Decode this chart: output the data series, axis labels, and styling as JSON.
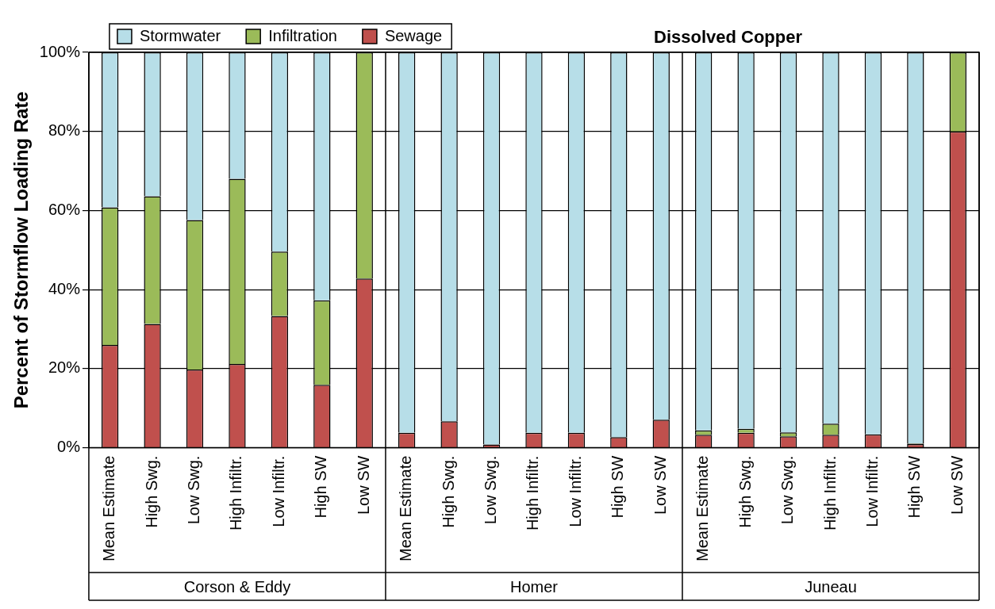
{
  "chart_data": {
    "type": "bar",
    "title": "Dissolved Copper",
    "ylabel": "Percent of Stormflow Loading Rate",
    "stacked": true,
    "grid": "y",
    "legend": "top left",
    "categories": [
      "Mean Estimate",
      "High Swg.",
      "Low Swg.",
      "High Infiltr.",
      "Low Infiltr.",
      "High SW",
      "Low SW",
      "Mean Estimate",
      "High Swg.",
      "Low Swg.",
      "High Infiltr.",
      "Low Infiltr.",
      "High SW",
      "Low SW",
      "Mean Estimate",
      "High Swg.",
      "Low Swg.",
      "High Infiltr.",
      "Low Infiltr.",
      "High SW",
      "Low SW"
    ],
    "annotations": [
      "Corson & Eddy",
      "Homer",
      "Juneau"
    ],
    "ylim": [
      0,
      100
    ],
    "yticks": [
      {
        "value": 0,
        "label": "0%"
      },
      {
        "value": 20,
        "label": "20%"
      },
      {
        "value": 40,
        "label": "40%"
      },
      {
        "value": 60,
        "label": "60%"
      },
      {
        "value": 80,
        "label": "80%"
      },
      {
        "value": 100,
        "label": "100%"
      }
    ],
    "series": [
      {
        "name": "Sewage",
        "color": "#c0504d",
        "values": [
          26,
          31.3,
          19.8,
          21.2,
          33.3,
          15.9,
          42.8,
          3.8,
          6.7,
          0.8,
          3.8,
          3.8,
          2.7,
          7.1,
          3.3,
          3.8,
          2.9,
          3.3,
          3.4,
          0.9,
          80
        ]
      },
      {
        "name": "Infiltration",
        "color": "#9bbb59",
        "values": [
          34.8,
          32.3,
          37.8,
          46.8,
          16.3,
          21.4,
          57.2,
          0,
          0,
          0,
          0,
          0,
          0,
          0,
          1.1,
          1,
          1,
          2.8,
          0,
          0.2,
          20
        ]
      },
      {
        "name": "Stormwater",
        "color": "#b7dee8",
        "values": [
          39.2,
          36.4,
          42.4,
          32,
          50.4,
          62.7,
          0,
          96.2,
          93.3,
          99.2,
          96.2,
          96.2,
          97.3,
          92.9,
          95.6,
          95.2,
          96.1,
          93.9,
          96.6,
          98.9,
          0
        ]
      }
    ]
  }
}
